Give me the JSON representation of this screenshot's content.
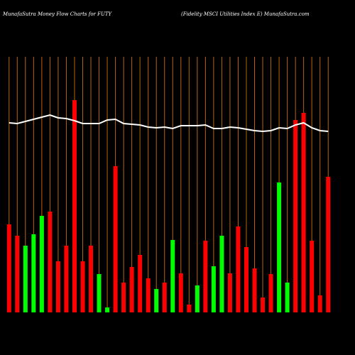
{
  "chart_data": {
    "type": "bar",
    "title": "MunafaSutra  Money Flow  Charts for FUTY",
    "subtitle": "(Fidelity MSCI Utilities Index E) MunafaSutra.com",
    "categories": [
      null,
      null,
      null,
      null,
      null,
      null,
      null,
      null,
      null,
      null,
      null,
      null,
      null,
      null,
      null,
      null,
      null,
      null,
      null,
      null,
      null,
      null,
      null,
      null,
      null,
      null,
      null,
      null,
      null,
      null,
      null,
      null,
      null,
      null,
      null,
      null,
      null,
      null,
      null,
      null
    ],
    "series": [
      {
        "type": "bar",
        "values": [
          124,
          108,
          94,
          110,
          136,
          142,
          72,
          94,
          299,
          72,
          94,
          54,
          7,
          206,
          42,
          64,
          81,
          48,
          33,
          42,
          102,
          55,
          11,
          38,
          101,
          65,
          108,
          55,
          121,
          92,
          62,
          21,
          54,
          183,
          42,
          271,
          281,
          101,
          24,
          191
        ],
        "colors": [
          "#ff0000",
          "#ff0000",
          "#00ff00",
          "#00ff00",
          "#00ff00",
          "#ff0000",
          "#ff0000",
          "#ff0000",
          "#ff0000",
          "#ff0000",
          "#ff0000",
          "#00ff00",
          "#00ff00",
          "#ff0000",
          "#ff0000",
          "#ff0000",
          "#ff0000",
          "#ff0000",
          "#00ff00",
          "#ff0000",
          "#00ff00",
          "#ff0000",
          "#ff0000",
          "#00ff00",
          "#ff0000",
          "#00ff00",
          "#00ff00",
          "#ff0000",
          "#ff0000",
          "#ff0000",
          "#ff0000",
          "#ff0000",
          "#ff0000",
          "#00ff00",
          "#00ff00",
          "#ff0000",
          "#ff0000",
          "#ff0000",
          "#ff0000",
          "#ff0000"
        ]
      },
      {
        "type": "line",
        "color": "#ffffff",
        "values": [
          267,
          266,
          269,
          272,
          275,
          278,
          274,
          273,
          270,
          266,
          266,
          266,
          271,
          272,
          266,
          265,
          264,
          261,
          260,
          261,
          259,
          263,
          263,
          263,
          264,
          259,
          259,
          261,
          260,
          258,
          256,
          255,
          256,
          260,
          259,
          264,
          267,
          260,
          256,
          255
        ]
      }
    ],
    "grid_color": "#b8650f",
    "ylim": [
      0,
      400
    ]
  }
}
